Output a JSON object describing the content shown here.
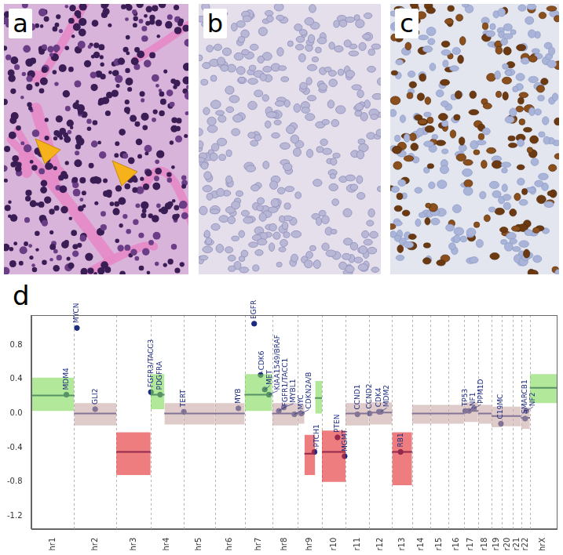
{
  "panels": [
    {
      "label": "a"
    },
    {
      "label": "b"
    },
    {
      "label": "c"
    }
  ],
  "chart_data": {
    "type": "scatter",
    "label": "d",
    "xlim": [
      0,
      3034
    ],
    "ylim": [
      -1.35,
      1.15
    ],
    "yticks": [
      0.8,
      0.4,
      {
        "value": 0,
        "label": "0.0"
      },
      -0.4,
      -0.8,
      -1.2
    ],
    "grid": false,
    "chromosomes": [
      {
        "label": "hr1",
        "start": 0,
        "end": 249
      },
      {
        "label": "hr2",
        "start": 249,
        "end": 492
      },
      {
        "label": "hr3",
        "start": 492,
        "end": 690
      },
      {
        "label": "hr4",
        "start": 690,
        "end": 881
      },
      {
        "label": "hr5",
        "start": 881,
        "end": 1062
      },
      {
        "label": "hr6",
        "start": 1062,
        "end": 1233
      },
      {
        "label": "hr7",
        "start": 1233,
        "end": 1392
      },
      {
        "label": "hr8",
        "start": 1392,
        "end": 1538
      },
      {
        "label": "hr9",
        "start": 1538,
        "end": 1679
      },
      {
        "label": "r10",
        "start": 1679,
        "end": 1815
      },
      {
        "label": "r11",
        "start": 1815,
        "end": 1950
      },
      {
        "label": "r12",
        "start": 1950,
        "end": 2084
      },
      {
        "label": "r13",
        "start": 2084,
        "end": 2199
      },
      {
        "label": "r14",
        "start": 2199,
        "end": 2306
      },
      {
        "label": "r15",
        "start": 2306,
        "end": 2409
      },
      {
        "label": "r16",
        "start": 2409,
        "end": 2499
      },
      {
        "label": "r17",
        "start": 2499,
        "end": 2580
      },
      {
        "label": "r18",
        "start": 2580,
        "end": 2658
      },
      {
        "label": "r19",
        "start": 2658,
        "end": 2717
      },
      {
        "label": "r20",
        "start": 2717,
        "end": 2780
      },
      {
        "label": "r21",
        "start": 2780,
        "end": 2828
      },
      {
        "label": "r22",
        "start": 2828,
        "end": 2879
      },
      {
        "label": "hrX",
        "start": 2879,
        "end": 3034
      }
    ],
    "segments": [
      {
        "start": 0,
        "end": 249,
        "value": 0.21,
        "range": [
          0.03,
          0.42
        ],
        "color": "#7ed957"
      },
      {
        "start": 249,
        "end": 492,
        "value": 0.0,
        "range": [
          -0.14,
          0.12
        ],
        "color": "#c9a9a6"
      },
      {
        "start": 492,
        "end": 690,
        "value": -0.45,
        "range": [
          -0.72,
          -0.22
        ],
        "color": "#e3262a"
      },
      {
        "start": 690,
        "end": 770,
        "value": 0.22,
        "range": [
          0.05,
          0.46
        ],
        "color": "#7ed957"
      },
      {
        "start": 770,
        "end": 881,
        "value": 0.0,
        "range": [
          -0.13,
          0.12
        ],
        "color": "#c9a9a6"
      },
      {
        "start": 881,
        "end": 1062,
        "value": 0.0,
        "range": [
          -0.13,
          0.12
        ],
        "color": "#c9a9a6"
      },
      {
        "start": 1062,
        "end": 1233,
        "value": 0.0,
        "range": [
          -0.13,
          0.12
        ],
        "color": "#c9a9a6"
      },
      {
        "start": 1233,
        "end": 1392,
        "value": 0.22,
        "range": [
          0.03,
          0.46
        ],
        "color": "#7ed957"
      },
      {
        "start": 1392,
        "end": 1538,
        "value": 0.0,
        "range": [
          -0.14,
          0.12
        ],
        "color": "#c9a9a6"
      },
      {
        "start": 1538,
        "end": 1578,
        "value": 0.0,
        "range": [
          -0.12,
          0.1
        ],
        "color": "#c9a9a6"
      },
      {
        "start": 1578,
        "end": 1640,
        "value": -0.47,
        "range": [
          -0.72,
          -0.25
        ],
        "color": "#e3262a"
      },
      {
        "start": 1640,
        "end": 1679,
        "value": 0.18,
        "range": [
          0.0,
          0.38
        ],
        "color": "#7ed957"
      },
      {
        "start": 1679,
        "end": 1815,
        "value": -0.45,
        "range": [
          -0.8,
          -0.2
        ],
        "color": "#e3262a"
      },
      {
        "start": 1815,
        "end": 1950,
        "value": 0.0,
        "range": [
          -0.14,
          0.12
        ],
        "color": "#c9a9a6"
      },
      {
        "start": 1950,
        "end": 2084,
        "value": 0.01,
        "range": [
          -0.13,
          0.13
        ],
        "color": "#c9a9a6"
      },
      {
        "start": 2084,
        "end": 2199,
        "value": -0.45,
        "range": [
          -0.84,
          -0.22
        ],
        "color": "#e3262a"
      },
      {
        "start": 2199,
        "end": 2306,
        "value": 0.0,
        "range": [
          -0.12,
          0.1
        ],
        "color": "#c9a9a6"
      },
      {
        "start": 2306,
        "end": 2409,
        "value": 0.0,
        "range": [
          -0.12,
          0.1
        ],
        "color": "#c9a9a6"
      },
      {
        "start": 2409,
        "end": 2499,
        "value": 0.0,
        "range": [
          -0.12,
          0.1
        ],
        "color": "#c9a9a6"
      },
      {
        "start": 2499,
        "end": 2580,
        "value": 0.03,
        "range": [
          -0.1,
          0.13
        ],
        "color": "#c9a9a6"
      },
      {
        "start": 2580,
        "end": 2658,
        "value": 0.0,
        "range": [
          -0.12,
          0.1
        ],
        "color": "#c9a9a6"
      },
      {
        "start": 2658,
        "end": 2717,
        "value": -0.03,
        "range": [
          -0.16,
          0.08
        ],
        "color": "#c9a9a6"
      },
      {
        "start": 2717,
        "end": 2780,
        "value": -0.03,
        "range": [
          -0.15,
          0.08
        ],
        "color": "#c9a9a6"
      },
      {
        "start": 2780,
        "end": 2828,
        "value": -0.03,
        "range": [
          -0.15,
          0.08
        ],
        "color": "#c9a9a6"
      },
      {
        "start": 2828,
        "end": 2879,
        "value": -0.05,
        "range": [
          -0.18,
          0.07
        ],
        "color": "#c9a9a6"
      },
      {
        "start": 2879,
        "end": 3034,
        "value": 0.3,
        "range": [
          0.12,
          0.46
        ],
        "color": "#7ed957"
      }
    ],
    "genes": {
      "color": "#1c2a80",
      "points": [
        {
          "name": "MDM4",
          "x": 204,
          "y": 0.22
        },
        {
          "name": "MYCN",
          "x": 265,
          "y": 1.0
        },
        {
          "name": "GLI2",
          "x": 370,
          "y": 0.05
        },
        {
          "name": "FGFR3/TACC3",
          "x": 692,
          "y": 0.25
        },
        {
          "name": "PDGFRA",
          "x": 745,
          "y": 0.22
        },
        {
          "name": "TERT",
          "x": 882,
          "y": 0.02
        },
        {
          "name": "MYB",
          "x": 1197,
          "y": 0.06
        },
        {
          "name": "EGFR",
          "x": 1288,
          "y": 1.05
        },
        {
          "name": "CDK6",
          "x": 1325,
          "y": 0.45
        },
        {
          "name": "MET",
          "x": 1349,
          "y": 0.28
        },
        {
          "name": "KIAA1549/BRAF",
          "x": 1373,
          "y": 0.22
        },
        {
          "name": "FGFR1/TACC1",
          "x": 1430,
          "y": 0.03
        },
        {
          "name": "MYBL1",
          "x": 1459,
          "y": 0.07
        },
        {
          "name": "MYC",
          "x": 1520,
          "y": -0.01
        },
        {
          "name": "CDKN2A/B",
          "x": 1560,
          "y": 0.0
        },
        {
          "name": "PTCH1",
          "x": 1636,
          "y": -0.45
        },
        {
          "name": "PTEN",
          "x": 1769,
          "y": -0.28
        },
        {
          "name": "MGMT",
          "x": 1810,
          "y": -0.5
        },
        {
          "name": "CCND1",
          "x": 1884,
          "y": -0.01
        },
        {
          "name": "CCND2",
          "x": 1954,
          "y": 0.0
        },
        {
          "name": "CDK4",
          "x": 2008,
          "y": 0.02
        },
        {
          "name": "MDM2",
          "x": 2019,
          "y": 0.02
        },
        {
          "name": "RB1",
          "x": 2133,
          "y": -0.45
        },
        {
          "name": "TP53",
          "x": 2506,
          "y": 0.03
        },
        {
          "name": "NF1",
          "x": 2528,
          "y": 0.03
        },
        {
          "name": "PPM1D",
          "x": 2557,
          "y": 0.06
        },
        {
          "name": "C19MC",
          "x": 2712,
          "y": -0.12
        },
        {
          "name": "SMARCB1",
          "x": 2852,
          "y": -0.06
        },
        {
          "name": "NF2",
          "x": 2858,
          "y": 0.03
        }
      ]
    }
  }
}
